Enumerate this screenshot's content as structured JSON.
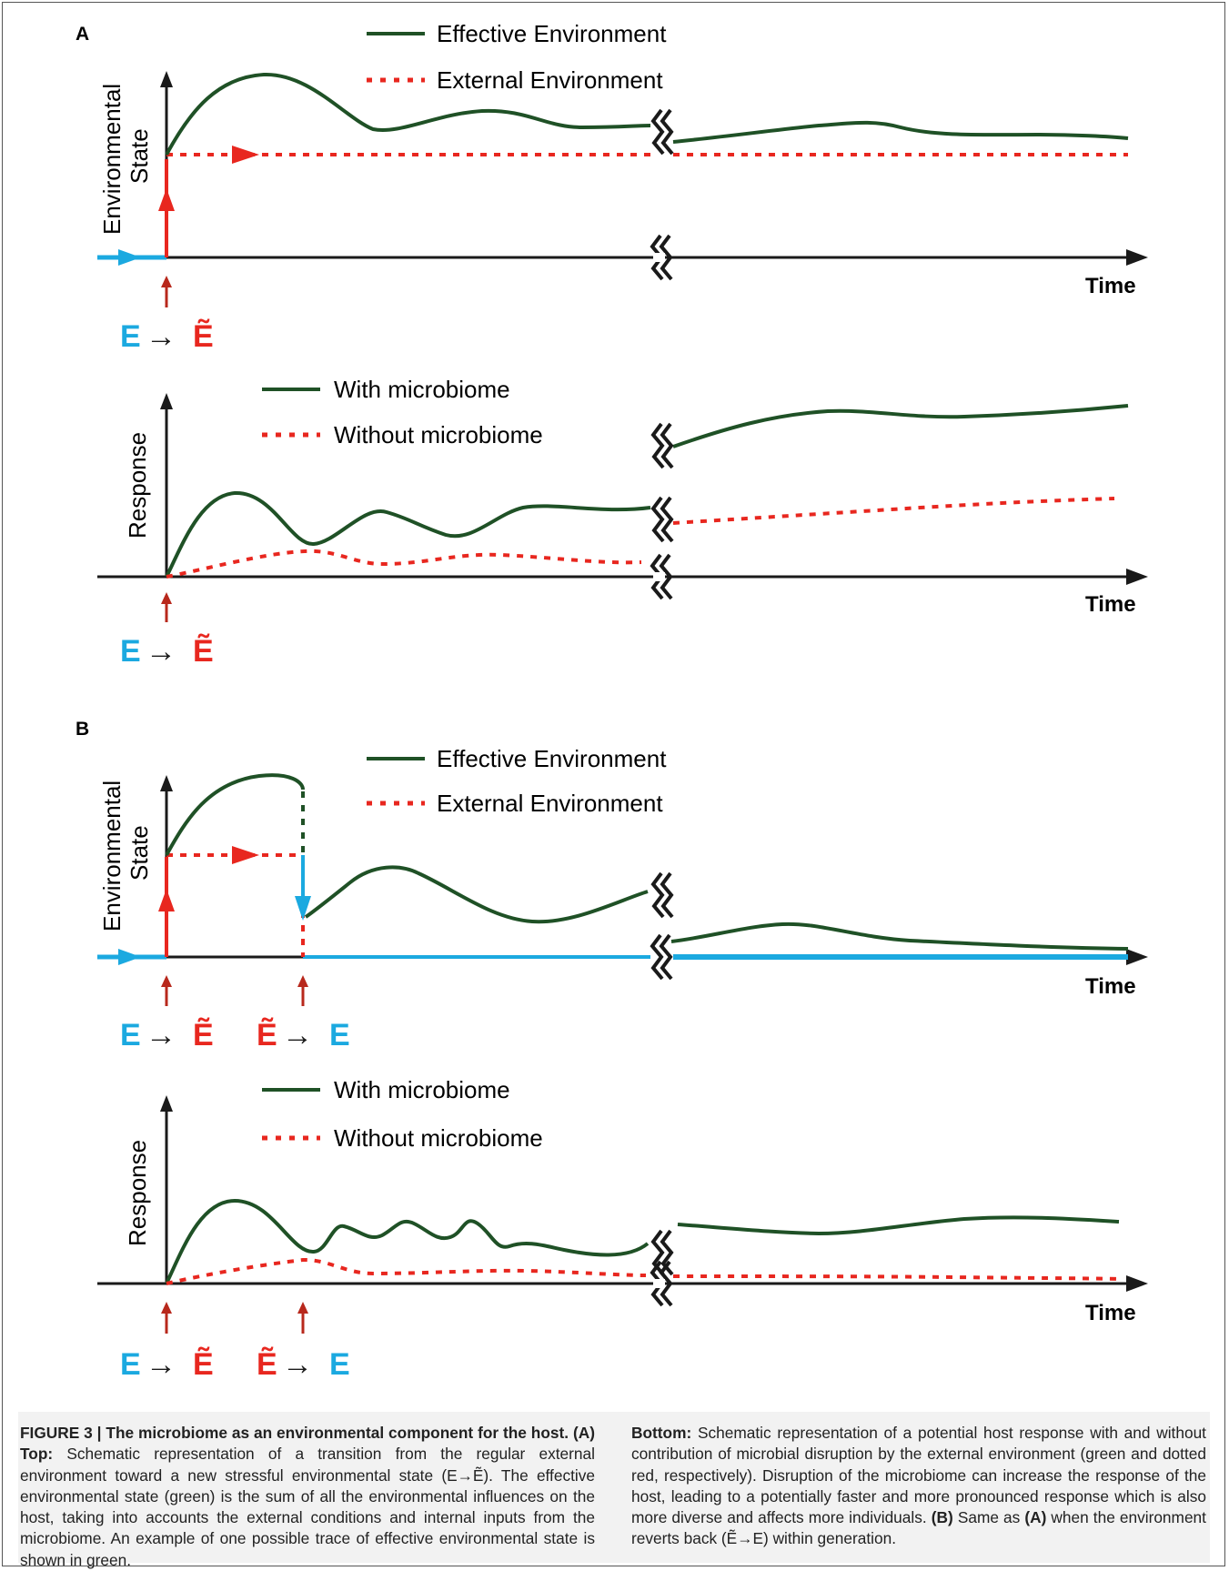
{
  "colors": {
    "green": "#1f5126",
    "red": "#e8271f",
    "blue": "#1ba9e0",
    "dark_red": "#b8281c",
    "axis": "#1a1a1a"
  },
  "panelA": {
    "label": "A",
    "top": {
      "legend": [
        "Effective Environment",
        "External Environment"
      ],
      "ylabel_line1": "Environmental",
      "ylabel_line2": "State",
      "xlabel": "Time",
      "transition": {
        "from": "E",
        "arrow": "→",
        "to": "Ẽ"
      }
    },
    "bottom": {
      "legend": [
        "With microbiome",
        "Without microbiome"
      ],
      "ylabel": "Response",
      "xlabel": "Time",
      "transition": {
        "from": "E",
        "arrow": "→",
        "to": "Ẽ"
      }
    }
  },
  "panelB": {
    "label": "B",
    "top": {
      "legend": [
        "Effective Environment",
        "External Environment"
      ],
      "ylabel_line1": "Environmental",
      "ylabel_line2": "State",
      "xlabel": "Time",
      "transition1": {
        "from": "E",
        "arrow": "→",
        "to": "Ẽ"
      },
      "transition2": {
        "from": "Ẽ",
        "arrow": "→",
        "to": "E"
      }
    },
    "bottom": {
      "legend": [
        "With microbiome",
        "Without microbiome"
      ],
      "ylabel": "Response",
      "xlabel": "Time",
      "transition1": {
        "from": "E",
        "arrow": "→",
        "to": "Ẽ"
      },
      "transition2": {
        "from": "Ẽ",
        "arrow": "→",
        "to": "E"
      }
    }
  },
  "caption": {
    "left": {
      "fig_label": "FIGURE 3 | The microbiome as an environmental component for the host.",
      "part_a": "(A) Top:",
      "text1": "Schematic representation of a transition from the regular external environment toward a new stressful environmental state (E→Ẽ). The effective environmental state (green) is the sum of all the environmental influences on the host, taking into accounts the external conditions and internal inputs from the microbiome. An example of one possible trace of effective environmental state is shown in green."
    },
    "right": {
      "bottom_label": "Bottom:",
      "text1": "Schematic representation of a potential host response with and without contribution of microbial disruption by the external environment (green and dotted red, respectively). Disruption of the microbiome can increase the response of the host, leading to a potentially faster and more pronounced response which is also more diverse and affects more individuals.",
      "b_label": "(B)",
      "text2": "Same as",
      "a_ref": "(A)",
      "text3": "when the environment reverts back (Ẽ→E) within generation."
    }
  }
}
